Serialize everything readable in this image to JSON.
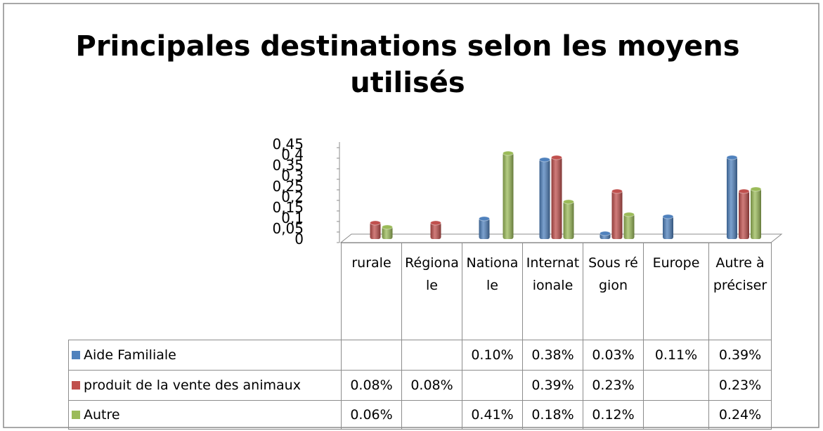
{
  "chart_data": {
    "type": "bar3d",
    "title": "Principales destinations selon les moyens utilisés",
    "categories": [
      "rurale",
      "Régionale",
      "Nationale",
      "Internationale",
      "Sous région",
      "Europe",
      "Autre à préciser"
    ],
    "series": [
      {
        "name": "Aide Familiale",
        "color": "#4f81bd",
        "values": [
          null,
          null,
          0.1,
          0.38,
          0.03,
          0.11,
          0.39
        ],
        "value_labels": [
          null,
          null,
          "0.10%",
          "0.38%",
          "0.03%",
          "0.11%",
          "0.39%"
        ]
      },
      {
        "name": "produit de la vente des animaux",
        "color": "#c0504d",
        "values": [
          0.08,
          0.08,
          null,
          0.39,
          0.23,
          null,
          0.23
        ],
        "value_labels": [
          "0.08%",
          "0.08%",
          null,
          "0.39%",
          "0.23%",
          null,
          "0.23%"
        ]
      },
      {
        "name": "Autre",
        "color": "#9bbb59",
        "values": [
          0.06,
          null,
          0.41,
          0.18,
          0.12,
          null,
          0.24
        ],
        "value_labels": [
          "0.06%",
          null,
          "0.41%",
          "0.18%",
          "0.12%",
          null,
          "0.24%"
        ]
      }
    ],
    "ylim": [
      0,
      0.45
    ],
    "yticks": [
      {
        "value": 0,
        "label": "0"
      },
      {
        "value": 0.05,
        "label": "0,05"
      },
      {
        "value": 0.1,
        "label": "0,1"
      },
      {
        "value": 0.15,
        "label": "0,15"
      },
      {
        "value": 0.2,
        "label": "0,2"
      },
      {
        "value": 0.25,
        "label": "0,25"
      },
      {
        "value": 0.3,
        "label": "0,3"
      },
      {
        "value": 0.35,
        "label": "0,35"
      },
      {
        "value": 0.4,
        "label": "0,4"
      },
      {
        "value": 0.45,
        "label": "0,45"
      }
    ],
    "data_table": true
  }
}
